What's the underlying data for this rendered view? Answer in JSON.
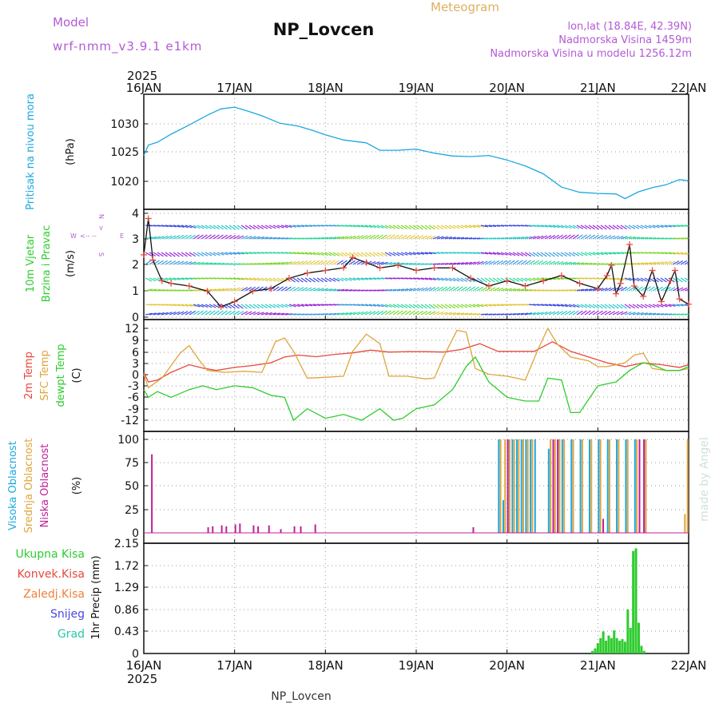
{
  "header": {
    "model_label": "Model",
    "model_name": "wrf-nmm_v3.9.1 e1km",
    "station_title": "NP_Lovcen",
    "product": "Meteogram",
    "coords": "lon,lat (18.84E, 42.39N)",
    "elevation": "Nadmorska Visina 1459m",
    "model_elevation": "Nadmorska Visina u modelu 1256.12m",
    "footer_station": "NP_Lovcen",
    "signature": "made by Angel"
  },
  "time_axis": {
    "year": "2025",
    "ticks": [
      "16JAN",
      "17JAN",
      "18JAN",
      "19JAN",
      "20JAN",
      "21JAN",
      "22JAN"
    ],
    "start_day": 16,
    "end_day": 22
  },
  "colors": {
    "pressure": "#1ca8e0",
    "temp2m": "#e8483c",
    "sfc": "#e0a43c",
    "dewpt": "#2ecc2e",
    "high_cloud": "#1ca8e0",
    "mid_cloud": "#e0a43c",
    "low_cloud": "#c0209a",
    "precip": "#2ecc2e",
    "header_purple": "#b35ad6",
    "meteogram_orange": "#e0b060"
  },
  "chart_data": [
    {
      "type": "line",
      "panel": "pressure",
      "ylabels": [
        "Pritisak na nivou mora",
        "(hPa)"
      ],
      "yticks": [
        "1030",
        "1025",
        "1020"
      ],
      "ylim": [
        1017,
        1034
      ],
      "series": [
        {
          "x": [
            16.0,
            16.05,
            16.15,
            16.3,
            16.5,
            16.7,
            16.85,
            17.0,
            17.15,
            17.3,
            17.5,
            17.7,
            17.85,
            18.0,
            18.2,
            18.45,
            18.6,
            18.8,
            19.0,
            19.2,
            19.4,
            19.6,
            19.8,
            20.0,
            20.2,
            20.4,
            20.6,
            20.8,
            21.0,
            21.2,
            21.3,
            21.45,
            21.6,
            21.75,
            21.9,
            22.0
          ],
          "y": [
            1024.5,
            1026.3,
            1026.8,
            1028.2,
            1029.8,
            1031.5,
            1032.6,
            1032.9,
            1032.2,
            1031.4,
            1030.1,
            1029.6,
            1028.9,
            1028.1,
            1027.2,
            1026.7,
            1025.4,
            1025.4,
            1025.6,
            1024.9,
            1024.4,
            1024.3,
            1024.5,
            1023.7,
            1022.7,
            1021.3,
            1019.0,
            1018.1,
            1017.9,
            1017.8,
            1017.0,
            1018.2,
            1018.9,
            1019.4,
            1020.3,
            1020.1
          ]
        }
      ]
    },
    {
      "type": "line",
      "panel": "wind",
      "ylabels": [
        "10m Vjetar",
        "Brzina i Pravac",
        "(m/s)"
      ],
      "compass": [
        "W",
        "E",
        "N",
        "S",
        "<-- --",
        ">"
      ],
      "yticks": [
        "4",
        "3",
        "2",
        "1",
        "0"
      ],
      "ylim": [
        0,
        4.1
      ],
      "series": [
        {
          "name": "speed",
          "x": [
            16.0,
            16.05,
            16.1,
            16.2,
            16.3,
            16.5,
            16.7,
            16.85,
            17.0,
            17.2,
            17.4,
            17.6,
            17.8,
            18.0,
            18.2,
            18.3,
            18.45,
            18.6,
            18.8,
            19.0,
            19.2,
            19.4,
            19.6,
            19.8,
            20.0,
            20.2,
            20.4,
            20.6,
            20.8,
            21.0,
            21.1,
            21.15,
            21.2,
            21.25,
            21.35,
            21.4,
            21.5,
            21.6,
            21.7,
            21.8,
            21.85,
            21.9,
            22.0
          ],
          "y": [
            2.4,
            3.8,
            2.2,
            1.4,
            1.3,
            1.2,
            1.0,
            0.4,
            0.6,
            1.0,
            1.1,
            1.5,
            1.7,
            1.8,
            1.9,
            2.3,
            2.1,
            1.9,
            2.0,
            1.8,
            1.9,
            1.9,
            1.5,
            1.2,
            1.4,
            1.2,
            1.4,
            1.6,
            1.3,
            1.1,
            1.6,
            2.0,
            0.9,
            1.3,
            2.8,
            1.2,
            0.8,
            1.8,
            0.6,
            1.4,
            1.8,
            0.7,
            0.5
          ]
        }
      ]
    },
    {
      "type": "line",
      "panel": "temperature",
      "ylabels": [
        "2m Temp",
        "SFC Temp",
        "dewpt Temp",
        "(C)"
      ],
      "yticks": [
        "12",
        "9",
        "6",
        "3",
        "0",
        "-3",
        "-6",
        "-9",
        "-12"
      ],
      "ylim": [
        -14,
        13
      ],
      "series": [
        {
          "name": "2m Temp",
          "x": [
            16.0,
            16.05,
            16.15,
            16.3,
            16.5,
            16.65,
            16.8,
            17.0,
            17.2,
            17.4,
            17.55,
            17.7,
            17.9,
            18.1,
            18.3,
            18.5,
            18.7,
            18.9,
            19.1,
            19.3,
            19.5,
            19.7,
            19.9,
            20.1,
            20.3,
            20.5,
            20.7,
            20.9,
            21.1,
            21.3,
            21.5,
            21.7,
            21.9,
            22.0
          ],
          "y": [
            0.5,
            -2.0,
            -1.5,
            0.5,
            2.5,
            1.6,
            1.0,
            1.8,
            2.3,
            3.0,
            4.5,
            5.0,
            4.6,
            5.2,
            5.6,
            6.3,
            5.8,
            5.9,
            5.9,
            5.8,
            6.5,
            8.0,
            6.0,
            6.0,
            6.0,
            8.5,
            6.0,
            4.5,
            3.0,
            2.0,
            3.0,
            2.5,
            1.8,
            2.5
          ]
        },
        {
          "name": "SFC Temp",
          "x": [
            16.0,
            16.05,
            16.2,
            16.4,
            16.5,
            16.6,
            16.7,
            16.9,
            17.1,
            17.3,
            17.45,
            17.55,
            17.65,
            17.8,
            18.0,
            18.2,
            18.3,
            18.45,
            18.6,
            18.7,
            18.9,
            19.1,
            19.2,
            19.3,
            19.45,
            19.55,
            19.65,
            19.8,
            20.0,
            20.2,
            20.35,
            20.45,
            20.55,
            20.7,
            20.9,
            21.0,
            21.1,
            21.3,
            21.4,
            21.5,
            21.6,
            21.75,
            21.9,
            22.0
          ],
          "y": [
            0.0,
            -3.5,
            -1.0,
            5.5,
            7.5,
            4.0,
            1.0,
            0.5,
            0.8,
            0.5,
            8.5,
            9.5,
            6.0,
            -1.0,
            -0.8,
            -0.5,
            6.0,
            10.5,
            8.0,
            -0.5,
            -0.5,
            -1.2,
            -1.0,
            4.5,
            11.5,
            11.0,
            1.5,
            0.0,
            -0.5,
            -1.5,
            7.0,
            12.0,
            8.0,
            4.5,
            3.5,
            2.0,
            2.0,
            3.0,
            5.0,
            5.5,
            1.5,
            1.0,
            1.0,
            1.5
          ]
        },
        {
          "name": "dewpt Temp",
          "x": [
            16.0,
            16.05,
            16.15,
            16.3,
            16.5,
            16.65,
            16.8,
            17.0,
            17.2,
            17.4,
            17.55,
            17.65,
            17.8,
            18.0,
            18.2,
            18.4,
            18.6,
            18.75,
            18.85,
            19.0,
            19.2,
            19.4,
            19.55,
            19.65,
            19.8,
            20.0,
            20.2,
            20.35,
            20.45,
            20.6,
            20.7,
            20.8,
            20.9,
            21.0,
            21.2,
            21.35,
            21.5,
            21.6,
            21.75,
            21.9,
            22.0
          ],
          "y": [
            -4.0,
            -6.0,
            -4.5,
            -6.0,
            -4.0,
            -3.0,
            -4.0,
            -3.0,
            -3.5,
            -5.5,
            -6.0,
            -12.0,
            -9.0,
            -11.5,
            -10.5,
            -12.0,
            -9.0,
            -12.0,
            -11.5,
            -9.0,
            -8.0,
            -4.0,
            2.0,
            4.5,
            -2.0,
            -6.0,
            -7.0,
            -7.0,
            -1.0,
            -1.5,
            -10.0,
            -10.0,
            -6.5,
            -3.0,
            -2.0,
            1.0,
            3.0,
            2.5,
            1.0,
            1.0,
            2.0
          ]
        }
      ]
    },
    {
      "type": "bar",
      "panel": "cloud",
      "ylabels": [
        "Visoka Oblacnost",
        "Srednja Oblacnost",
        "Niska Oblacnost",
        "(%)"
      ],
      "yticks": [
        "100",
        "75",
        "50",
        "25",
        "0"
      ],
      "ylim": [
        0,
        100
      ],
      "series": [
        {
          "name": "Visoka Oblacnost",
          "x": [
            19.9,
            19.95,
            20.0,
            20.05,
            20.1,
            20.15,
            20.2,
            20.25,
            20.3,
            20.45,
            20.5,
            20.55,
            20.6,
            20.7,
            20.8,
            20.9,
            21.0,
            21.1,
            21.2,
            21.3,
            21.4,
            21.5
          ],
          "values": [
            100,
            35,
            100,
            100,
            100,
            100,
            100,
            100,
            100,
            90,
            100,
            100,
            100,
            100,
            100,
            100,
            100,
            100,
            100,
            100,
            100,
            100
          ]
        },
        {
          "name": "Srednja Oblacnost",
          "x": [
            19.92,
            19.97,
            20.02,
            20.07,
            20.12,
            20.17,
            20.22,
            20.27,
            20.47,
            20.52,
            20.57,
            20.62,
            20.72,
            20.82,
            20.92,
            21.02,
            21.12,
            21.22,
            21.32,
            21.42,
            21.52,
            21.95,
            21.98
          ],
          "values": [
            100,
            100,
            100,
            100,
            100,
            100,
            100,
            100,
            100,
            100,
            100,
            100,
            100,
            100,
            100,
            100,
            100,
            100,
            100,
            100,
            100,
            20,
            100
          ]
        },
        {
          "name": "Niska Oblacnost",
          "x": [
            16.08,
            16.7,
            16.75,
            16.85,
            16.9,
            17.0,
            17.05,
            17.2,
            17.25,
            17.37,
            17.5,
            17.65,
            17.72,
            17.88,
            19.62,
            20.0,
            20.5,
            20.55,
            21.05,
            21.45,
            21.5
          ],
          "values": [
            84,
            6,
            7,
            8,
            7,
            9,
            10,
            8,
            7,
            8,
            4,
            7,
            7,
            9,
            6,
            100,
            100,
            100,
            15,
            100,
            100
          ]
        }
      ]
    },
    {
      "type": "bar",
      "panel": "precip",
      "ylabels": [
        "1hr Precip (mm)"
      ],
      "legend": [
        "Ukupna Kisa",
        "Konvek.Kisa",
        "Zaledj.Kisa",
        "Snijeg",
        "Grad"
      ],
      "legend_colors": [
        "#2ecc2e",
        "#e8483c",
        "#f0803c",
        "#4848e0",
        "#28c8a8"
      ],
      "yticks": [
        "2.15",
        "1.72",
        "1.29",
        "0.86",
        "0.43",
        "0"
      ],
      "ylim": [
        0,
        2.15
      ],
      "series": [
        {
          "name": "Ukupna Kisa",
          "x": [
            20.94,
            20.97,
            21.0,
            21.03,
            21.06,
            21.09,
            21.12,
            21.15,
            21.18,
            21.21,
            21.24,
            21.27,
            21.3,
            21.33,
            21.36,
            21.39,
            21.42,
            21.45,
            21.48,
            21.51,
            21.54,
            21.57
          ],
          "values": [
            0.05,
            0.1,
            0.2,
            0.3,
            0.43,
            0.25,
            0.35,
            0.3,
            0.45,
            0.3,
            0.25,
            0.28,
            0.23,
            0.86,
            0.5,
            2.0,
            2.05,
            0.6,
            0.15,
            0.05,
            0.0,
            0.0
          ]
        }
      ]
    }
  ]
}
